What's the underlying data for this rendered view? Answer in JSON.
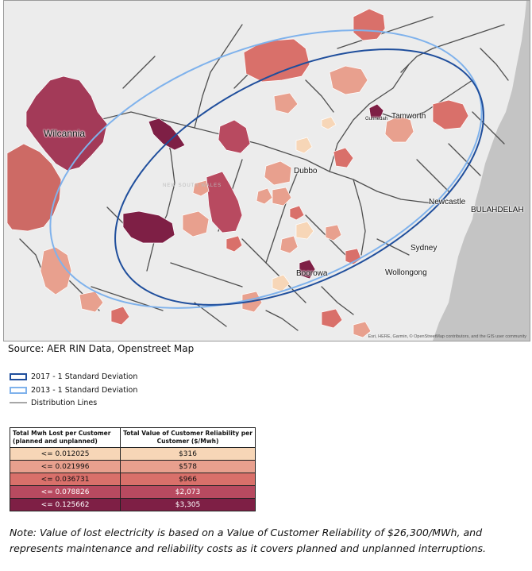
{
  "map": {
    "places": {
      "wilcannia": "Wilcannia",
      "tamworth": "Tamworth",
      "gunnedah": "Gunnedah",
      "dubbo": "Dubbo",
      "newcastle": "Newcastle",
      "bulahdelah": "BULAHDELAH",
      "sydney": "Sydney",
      "wollongong": "Wollongong",
      "boorowa": "Boorowa"
    },
    "region_label": "NEW SOUTH WALES",
    "attribution": "Esri, HERE, Garmin, © OpenStreetMap contributors, and the GIS user community",
    "colors": {
      "background": "#ececec",
      "sea": "#c4c4c4",
      "roads": "#4f4f4f",
      "ellipse_2017": "#1f4e9c",
      "ellipse_2013": "#7fb2ec"
    }
  },
  "source": "Source: AER RIN Data, Openstreet Map",
  "legend": {
    "ellipse_2017": {
      "label": "2017 - 1 Standard Deviation",
      "color": "#1f4e9c"
    },
    "ellipse_2013": {
      "label": "2013 - 1 Standard Deviation",
      "color": "#7fb2ec"
    },
    "distribution_lines": {
      "label": "Distribution Lines",
      "color": "#a7a7a7"
    }
  },
  "table": {
    "header_left": "Total Mwh Lost per Customer (planned and unplanned)",
    "header_right": "Total Value of Customer Reliability per Customer ($/Mwh)",
    "rows": [
      {
        "threshold": "<= 0.012025",
        "value": "$316",
        "color": "#f7d6b7",
        "text_color": "#111111"
      },
      {
        "threshold": "<= 0.021996",
        "value": "$578",
        "color": "#e8a08e",
        "text_color": "#111111"
      },
      {
        "threshold": "<= 0.036731",
        "value": "$966",
        "color": "#d9706a",
        "text_color": "#111111"
      },
      {
        "threshold": "<= 0.078826",
        "value": "$2,073",
        "color": "#b84a60",
        "text_color": "#ffffff"
      },
      {
        "threshold": "<= 0.125662",
        "value": "$3,305",
        "color": "#7e1f45",
        "text_color": "#ffffff"
      }
    ]
  },
  "note": "Note: Value of lost electricity is based on a Value of Customer Reliability of $26,300/MWh, and represents maintenance and reliability costs as it covers planned and unplanned interruptions."
}
